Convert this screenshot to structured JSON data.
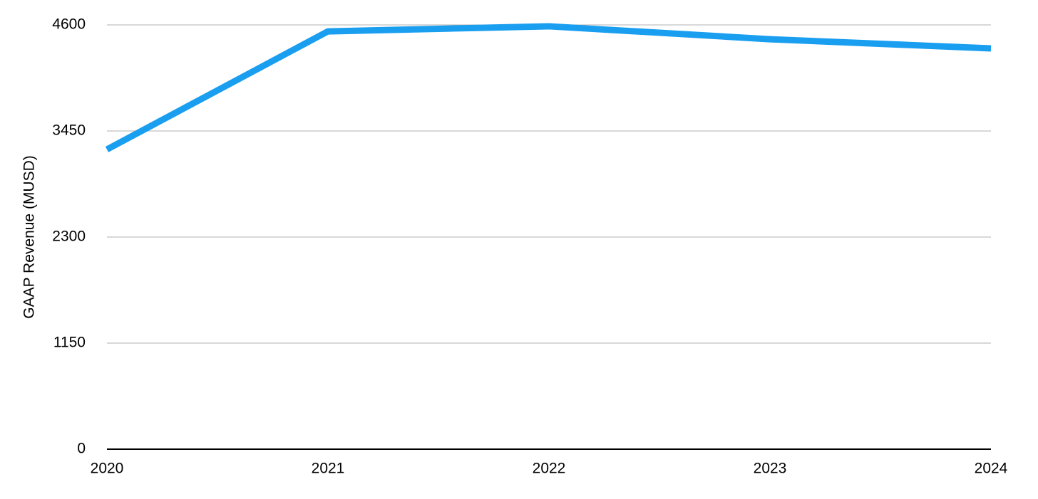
{
  "chart_data": {
    "type": "line",
    "y_label": "GAAP Revenue (MUSD)",
    "x": [
      2020,
      2021,
      2022,
      2023,
      2024
    ],
    "xlim": [
      2020,
      2024
    ],
    "xticks": [
      2020,
      2021,
      2022,
      2023,
      2024
    ],
    "values": [
      3250,
      4530,
      4585,
      4445,
      4345
    ],
    "color": "#1a9ef0",
    "ylim": [
      0,
      4600
    ],
    "yticks": [
      0,
      1150,
      2300,
      3450,
      4600
    ],
    "grid": true
  }
}
